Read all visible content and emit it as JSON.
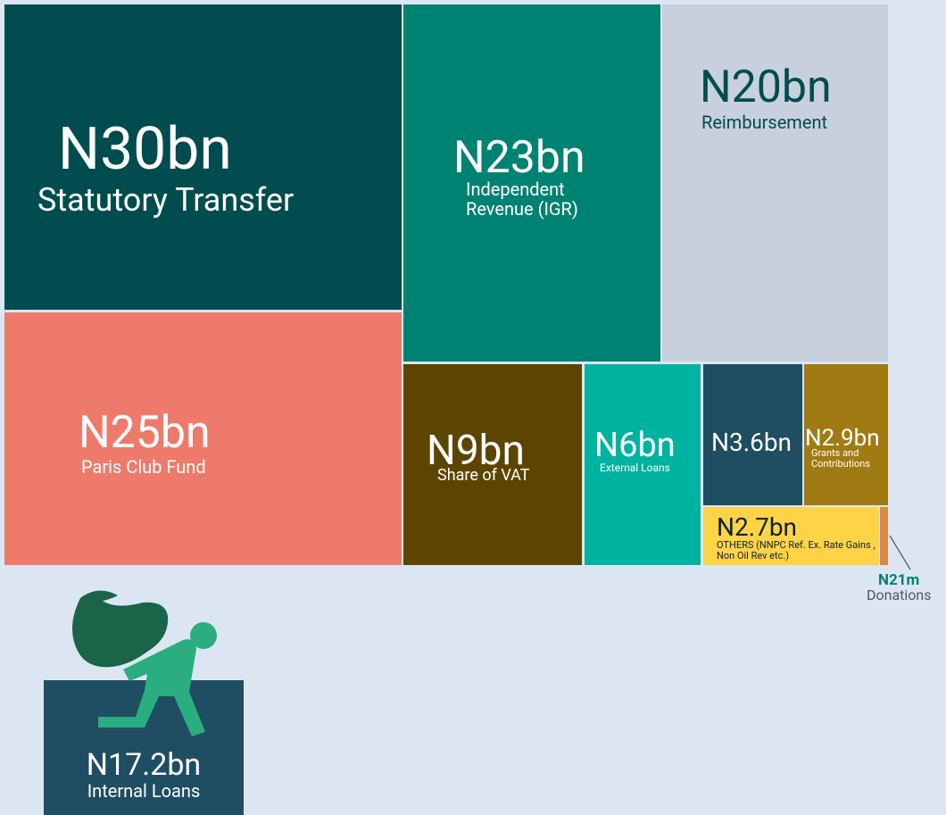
{
  "tiles": [
    {
      "value": "N30bn",
      "label": "Statutory Transfer"
    },
    {
      "value": "N23bn",
      "label": "Independent Revenue (IGR)"
    },
    {
      "value": "N20bn",
      "label": "Reimbursement"
    },
    {
      "value": "N25bn",
      "label": "Paris Club Fund"
    },
    {
      "value": "N9bn",
      "label": "Share of VAT"
    },
    {
      "value": "N6bn",
      "label": "External Loans"
    },
    {
      "value": "N3.6bn"
    },
    {
      "value": "N2.9bn",
      "label": "Grants and Contributions"
    },
    {
      "value": "N2.7bn",
      "label": "OTHERS (NNPC Ref. Ex. Rate Gains , Non Oil Rev etc.)"
    },
    {
      "value": "N21m",
      "label": "Donations"
    }
  ],
  "internal": {
    "value": "N17.2bn",
    "label": "Internal Loans"
  }
}
